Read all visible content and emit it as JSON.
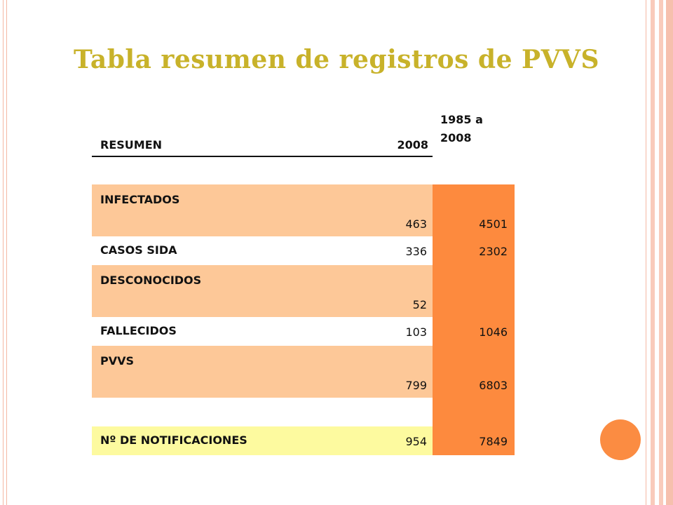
{
  "slide": {
    "title": "Tabla resumen de registros de PVVS",
    "colors": {
      "title": "#c8b22a",
      "peach": "#fdc898",
      "orange": "#fd8a3e",
      "yellow": "#fdfa9f",
      "frame": "#f4b8a4",
      "accent_dot": "#fb8c42"
    }
  },
  "table": {
    "headers": {
      "label": "RESUMEN",
      "year": "2008",
      "range_line1": "1985 a",
      "range_line2": "2008"
    },
    "rows": [
      {
        "label": "INFECTADOS",
        "v2008": "463",
        "total": "4501"
      },
      {
        "label": "CASOS SIDA",
        "v2008": "336",
        "total": "2302"
      },
      {
        "label": "DESCONOCIDOS",
        "v2008": "52",
        "total": ""
      },
      {
        "label": "FALLECIDOS",
        "v2008": "103",
        "total": "1046"
      },
      {
        "label": "PVVS",
        "v2008": "799",
        "total": "6803"
      },
      {
        "label": "",
        "v2008": "",
        "total": ""
      },
      {
        "label": "Nº DE NOTIFICACIONES",
        "v2008": "954",
        "total": "7849"
      }
    ]
  }
}
